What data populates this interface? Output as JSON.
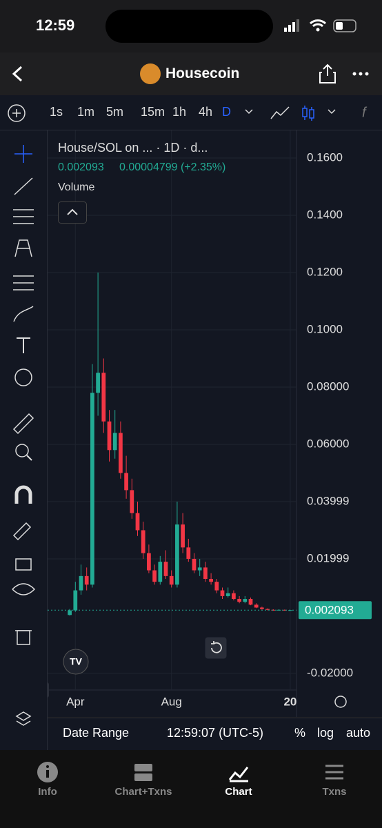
{
  "status_bar": {
    "time": "12:59"
  },
  "header": {
    "title": "Housecoin"
  },
  "toolbar": {
    "intervals": [
      "1s",
      "1m",
      "5m",
      "15m",
      "1h",
      "4h",
      "D"
    ]
  },
  "chart_data": {
    "type": "candlestick",
    "title": "House/SOL on ... · 1D · d...",
    "change": "0.00004799 (+2.35%)",
    "volume_label": "Volume",
    "categories": [
      null,
      null,
      null,
      null,
      null,
      null,
      null,
      null,
      null,
      null,
      null,
      null,
      null,
      null,
      null,
      null,
      null,
      null,
      null,
      null,
      null,
      null,
      null,
      null,
      null,
      null,
      null,
      null,
      null,
      null,
      null,
      null,
      null,
      null,
      null,
      null,
      null,
      null,
      null,
      null
    ],
    "open": [
      0.0004,
      0.002,
      0.009,
      0.014,
      0.011,
      0.078,
      0.085,
      0.068,
      0.058,
      0.064,
      0.05,
      0.044,
      0.036,
      0.03,
      0.022,
      0.016,
      0.012,
      0.019,
      0.014,
      0.011,
      0.032,
      0.024,
      0.02,
      0.016,
      0.017,
      0.013,
      0.012,
      0.009,
      0.007,
      0.008,
      0.006,
      0.005,
      0.006,
      0.004,
      0.003,
      0.0025,
      0.0022,
      0.0021,
      0.0022,
      0.002
    ],
    "high": [
      0.0025,
      0.012,
      0.018,
      0.017,
      0.088,
      0.12,
      0.09,
      0.072,
      0.072,
      0.068,
      0.056,
      0.048,
      0.04,
      0.033,
      0.025,
      0.018,
      0.021,
      0.023,
      0.016,
      0.04,
      0.036,
      0.027,
      0.022,
      0.02,
      0.019,
      0.015,
      0.013,
      0.01,
      0.01,
      0.009,
      0.007,
      0.007,
      0.0065,
      0.0045,
      0.0033,
      0.0027,
      0.0024,
      0.0024,
      0.0023,
      0.0022
    ],
    "low": [
      0.0002,
      0.0015,
      0.0075,
      0.009,
      0.01,
      0.07,
      0.064,
      0.054,
      0.055,
      0.048,
      0.041,
      0.034,
      0.028,
      0.02,
      0.015,
      0.011,
      0.011,
      0.013,
      0.01,
      0.01,
      0.022,
      0.019,
      0.015,
      0.014,
      0.012,
      0.011,
      0.008,
      0.006,
      0.0065,
      0.0055,
      0.0045,
      0.0045,
      0.0038,
      0.0028,
      0.0023,
      0.002,
      0.0019,
      0.002,
      0.0019,
      0.0019
    ],
    "close": [
      0.002,
      0.009,
      0.014,
      0.011,
      0.078,
      0.085,
      0.068,
      0.058,
      0.064,
      0.05,
      0.044,
      0.036,
      0.03,
      0.022,
      0.016,
      0.012,
      0.019,
      0.014,
      0.011,
      0.032,
      0.024,
      0.02,
      0.016,
      0.017,
      0.013,
      0.012,
      0.009,
      0.007,
      0.008,
      0.006,
      0.005,
      0.006,
      0.004,
      0.003,
      0.0025,
      0.0022,
      0.0021,
      0.0022,
      0.002,
      0.002093
    ],
    "up_color": "#22ab94",
    "down_color": "#f23645",
    "ylim": [
      -0.0258,
      0.167
    ],
    "yticks": [
      {
        "value": 0.16,
        "label": "0.1600"
      },
      {
        "value": 0.14,
        "label": "0.1400"
      },
      {
        "value": 0.12,
        "label": "0.1200"
      },
      {
        "value": 0.1,
        "label": "0.1000"
      },
      {
        "value": 0.08,
        "label": "0.08000"
      },
      {
        "value": 0.06,
        "label": "0.06000"
      },
      0.03999,
      0.01999,
      {
        "value": -0.02,
        "label": "-0.02000"
      }
    ],
    "xticks": [
      {
        "value": 1,
        "label": "Apr"
      },
      {
        "value": 18,
        "label": "Aug"
      },
      {
        "value": 39,
        "label": "20"
      }
    ],
    "grid": true
  },
  "bottom_bar": {
    "date_range": "Date Range",
    "time": "12:59:07 (UTC-5)",
    "options": [
      "%",
      "log",
      "auto"
    ]
  },
  "tabs": [
    "Info",
    "Chart+Txns",
    "Chart",
    "Txns"
  ]
}
